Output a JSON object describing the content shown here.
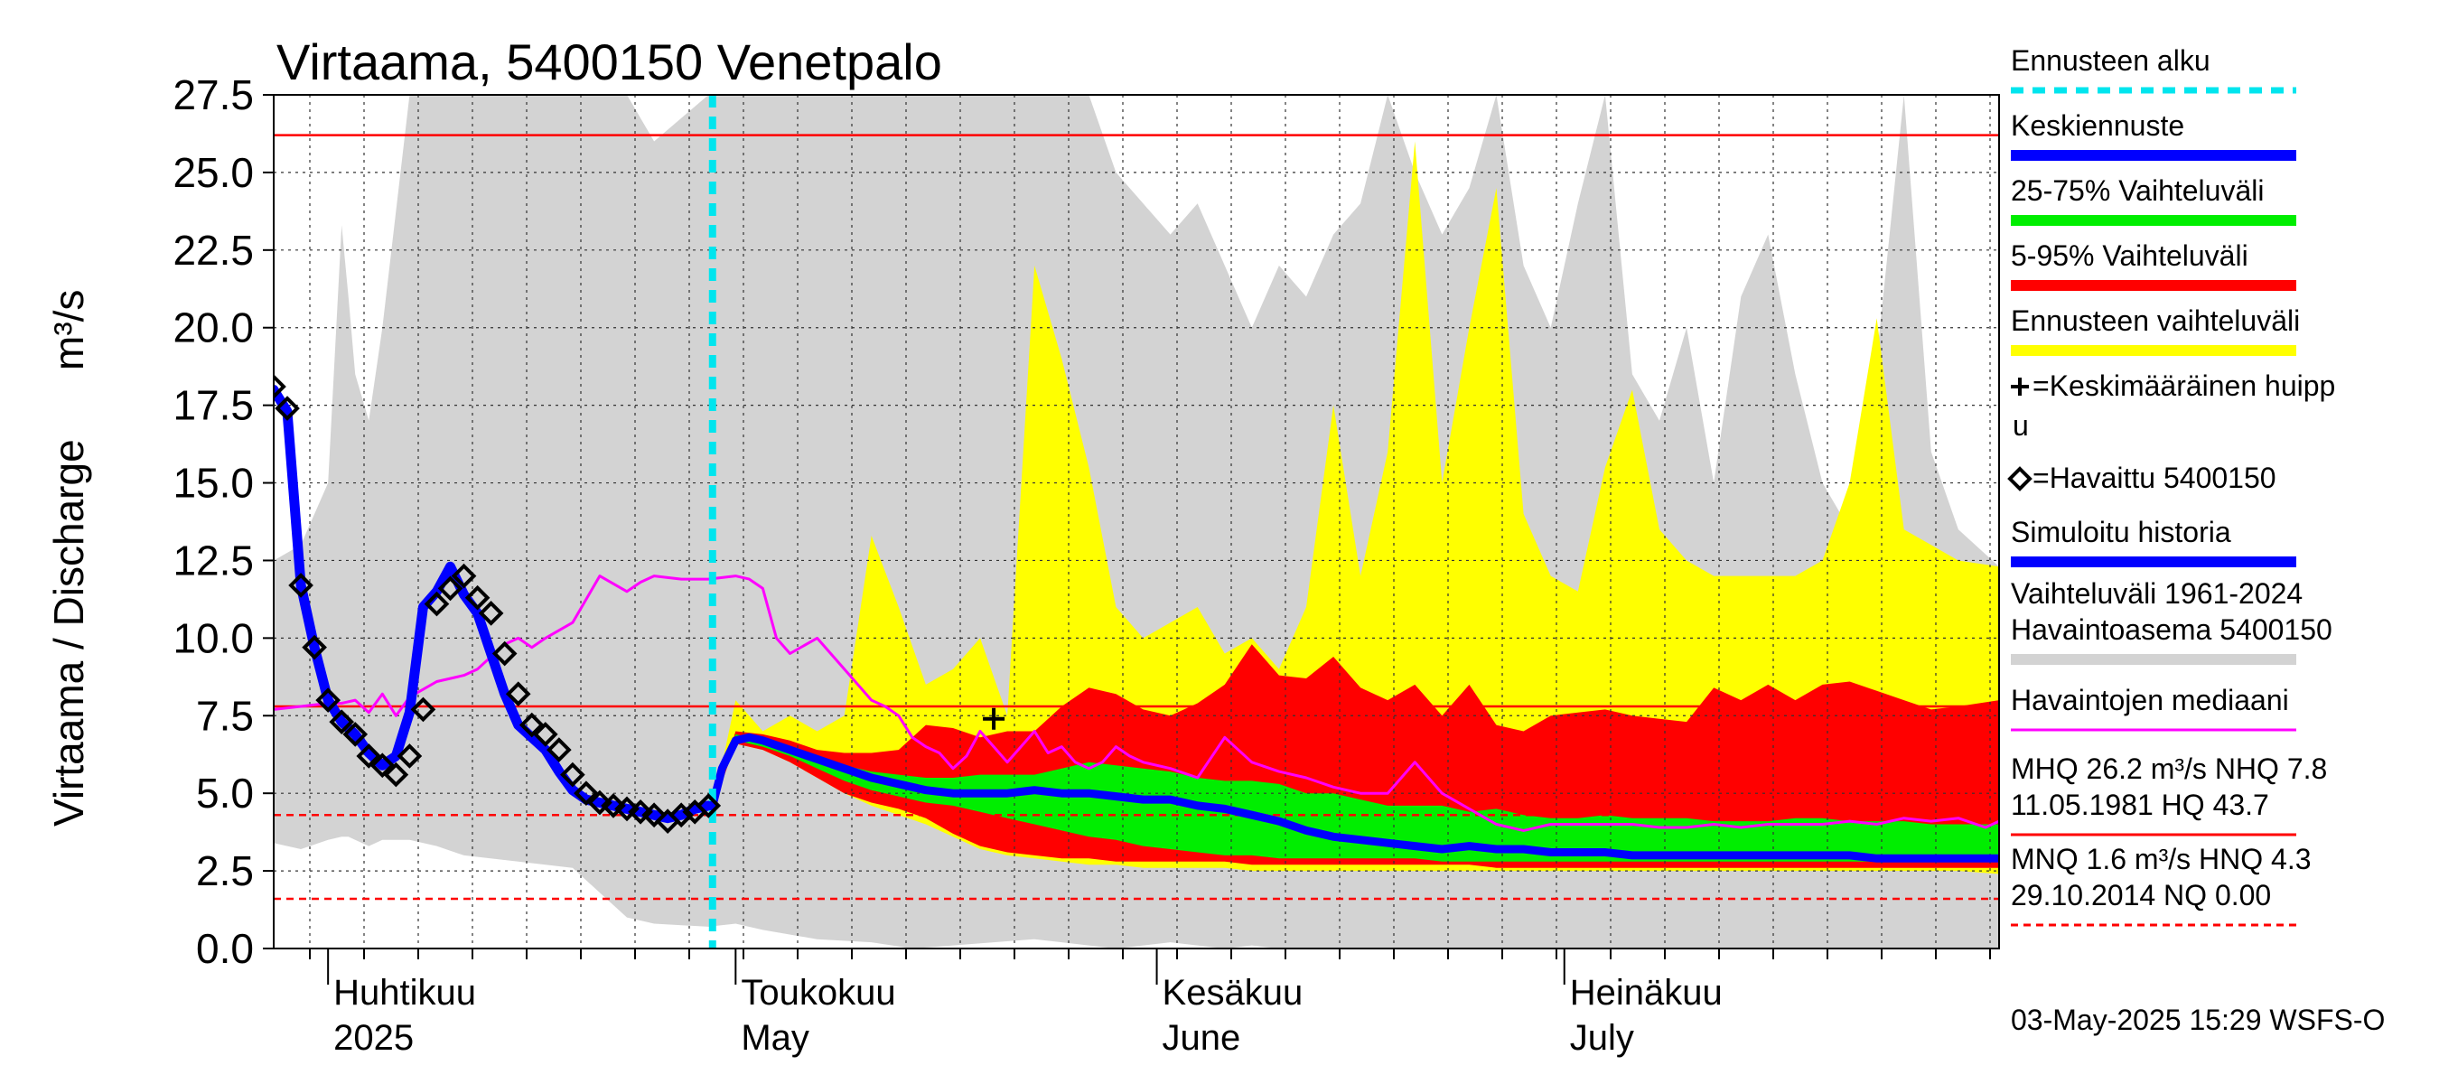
{
  "chart_data": {
    "type": "area",
    "title": "Virtaama, 5400150 Venetpalo",
    "ylabel": "Virtaama / Discharge",
    "yunit": "m³/s",
    "ylim": [
      0,
      27.5
    ],
    "yticks": [
      "0.0",
      "2.5",
      "5.0",
      "7.5",
      "10.0",
      "12.5",
      "15.0",
      "17.5",
      "20.0",
      "22.5",
      "25.0",
      "27.5"
    ],
    "x_range_days": [
      0,
      127
    ],
    "x_day0": "2025-03-28",
    "months": [
      {
        "day": 4,
        "fi": "Huhtikuu",
        "en": "2025"
      },
      {
        "day": 34,
        "fi": "Toukokuu",
        "en": "May"
      },
      {
        "day": 65,
        "fi": "Kesäkuu",
        "en": "June"
      },
      {
        "day": 95,
        "fi": "Heinäkuu",
        "en": "July"
      }
    ],
    "forecast_start_day": 32.3,
    "series": [
      {
        "name": "Vaihteluväli 1961-2024 Havaintoasema 5400150 (gray)",
        "color": "#d3d3d3",
        "x": [
          0,
          2,
          4,
          5,
          5.5,
          6,
          7,
          8,
          10,
          12,
          14,
          18,
          22,
          26,
          28,
          32,
          34,
          36,
          40,
          44,
          47,
          50,
          53,
          56,
          58,
          60,
          62,
          64,
          66,
          68,
          70,
          72,
          74,
          76,
          78,
          80,
          82,
          84,
          86,
          88,
          90,
          92,
          94,
          96,
          98,
          100,
          102,
          104,
          106,
          108,
          110,
          112,
          114,
          116,
          118,
          120,
          122,
          124,
          127
        ],
        "upper": [
          12.5,
          13,
          15,
          23.3,
          21,
          18.5,
          17,
          20,
          27.5,
          27.5,
          27.5,
          27.5,
          27.5,
          27.5,
          26,
          27.5,
          27.5,
          27.5,
          27.5,
          27.5,
          27.5,
          27.5,
          27.5,
          27.5,
          27.5,
          27.5,
          25,
          24,
          23,
          24,
          22,
          20,
          22,
          21,
          23,
          24,
          27.5,
          25,
          23,
          24.5,
          27.5,
          22,
          20,
          24,
          27.5,
          18.5,
          17,
          20,
          15,
          21,
          23,
          18.5,
          15,
          13.5,
          19,
          27.5,
          16,
          13.5,
          12.3
        ],
        "lower": [
          3.4,
          3.2,
          3.5,
          3.6,
          3.6,
          3.5,
          3.3,
          3.5,
          3.5,
          3.3,
          3.0,
          2.8,
          2.6,
          1.0,
          0.8,
          0.7,
          0.8,
          0.6,
          0.3,
          0.2,
          0.0,
          0.1,
          0.2,
          0.3,
          0.2,
          0.1,
          0.0,
          0.1,
          0.2,
          0.1,
          0.0,
          0.1,
          0.0,
          0.0,
          0.0,
          0.0,
          0.0,
          0.0,
          0.0,
          0.0,
          0.0,
          0.0,
          0.0,
          0.0,
          0.0,
          0.0,
          0.0,
          0.0,
          0.0,
          0.0,
          0.0,
          0.0,
          0.0,
          0.0,
          0.0,
          0.0,
          0.0,
          0.0,
          0.0
        ]
      },
      {
        "name": "Ennusteen vaihteluväli (yellow)",
        "color": "#ffff00",
        "x": [
          32.3,
          34,
          36,
          38,
          40,
          42,
          44,
          46,
          48,
          50,
          52,
          54,
          56,
          58,
          60,
          62,
          64,
          66,
          68,
          70,
          72,
          74,
          76,
          78,
          80,
          82,
          84,
          86,
          88,
          90,
          92,
          94,
          96,
          98,
          100,
          102,
          104,
          106,
          108,
          110,
          112,
          114,
          116,
          118,
          120,
          122,
          124,
          127
        ],
        "upper": [
          4.5,
          8.0,
          7.0,
          7.5,
          7.0,
          7.5,
          13.3,
          11,
          8.5,
          9,
          10,
          7.5,
          22,
          19,
          15.5,
          11,
          10,
          10.5,
          11,
          9.5,
          10,
          9,
          11,
          17.5,
          12,
          16,
          26,
          15,
          20,
          24.5,
          14,
          12,
          11.5,
          15.5,
          18,
          13.5,
          12.5,
          12,
          12,
          12,
          12,
          12.5,
          15,
          20.3,
          13.5,
          13,
          12.5,
          12.3
        ],
        "lower": [
          4.5,
          6.6,
          6.4,
          6.0,
          5.5,
          5.0,
          4.6,
          4.3,
          4.0,
          3.6,
          3.2,
          3.0,
          2.9,
          2.8,
          2.7,
          2.7,
          2.6,
          2.6,
          2.6,
          2.6,
          2.5,
          2.5,
          2.5,
          2.5,
          2.5,
          2.5,
          2.5,
          2.5,
          2.5,
          2.5,
          2.5,
          2.5,
          2.5,
          2.5,
          2.5,
          2.5,
          2.5,
          2.5,
          2.5,
          2.5,
          2.5,
          2.5,
          2.5,
          2.5,
          2.5,
          2.5,
          2.5,
          2.4
        ]
      },
      {
        "name": "5-95% Vaihteluväli (red)",
        "color": "#ff0000",
        "x": [
          32.3,
          34,
          36,
          38,
          40,
          42,
          44,
          46,
          48,
          50,
          52,
          54,
          56,
          58,
          60,
          62,
          64,
          66,
          68,
          70,
          72,
          74,
          76,
          78,
          80,
          82,
          84,
          86,
          88,
          90,
          92,
          94,
          96,
          98,
          100,
          102,
          104,
          106,
          108,
          110,
          112,
          114,
          116,
          118,
          120,
          122,
          124,
          127
        ],
        "upper": [
          4.5,
          7.0,
          6.9,
          6.7,
          6.4,
          6.3,
          6.3,
          6.4,
          7.2,
          7.1,
          6.8,
          7.0,
          7.0,
          7.8,
          8.4,
          8.2,
          7.7,
          7.5,
          7.9,
          8.5,
          9.8,
          8.8,
          8.7,
          9.4,
          8.4,
          8.0,
          8.5,
          7.5,
          8.5,
          7.2,
          7.0,
          7.5,
          7.6,
          7.7,
          7.5,
          7.4,
          7.3,
          8.4,
          8.0,
          8.5,
          8.0,
          8.5,
          8.6,
          8.3,
          8.0,
          7.7,
          7.8,
          8.0
        ],
        "lower": [
          4.5,
          6.6,
          6.4,
          6.0,
          5.5,
          5.0,
          4.7,
          4.5,
          4.2,
          3.7,
          3.3,
          3.1,
          3.0,
          2.9,
          2.9,
          2.8,
          2.8,
          2.8,
          2.8,
          2.8,
          2.7,
          2.7,
          2.7,
          2.7,
          2.7,
          2.7,
          2.7,
          2.7,
          2.7,
          2.6,
          2.6,
          2.6,
          2.6,
          2.6,
          2.6,
          2.6,
          2.6,
          2.6,
          2.6,
          2.6,
          2.6,
          2.6,
          2.6,
          2.6,
          2.6,
          2.6,
          2.6,
          2.6
        ]
      },
      {
        "name": "25-75% Vaihteluväli (green)",
        "color": "#00ee00",
        "x": [
          32.3,
          34,
          36,
          38,
          40,
          42,
          44,
          46,
          48,
          50,
          52,
          54,
          56,
          58,
          60,
          62,
          64,
          66,
          68,
          70,
          72,
          74,
          76,
          78,
          80,
          82,
          84,
          86,
          88,
          90,
          92,
          94,
          96,
          98,
          100,
          102,
          104,
          106,
          108,
          110,
          112,
          114,
          116,
          118,
          120,
          122,
          124,
          127
        ],
        "upper": [
          4.5,
          6.9,
          6.7,
          6.5,
          6.2,
          5.9,
          5.7,
          5.6,
          5.5,
          5.5,
          5.6,
          5.6,
          5.6,
          5.8,
          6.0,
          5.9,
          5.8,
          5.7,
          5.5,
          5.4,
          5.4,
          5.3,
          5.0,
          5.0,
          4.8,
          4.6,
          4.6,
          4.6,
          4.4,
          4.5,
          4.3,
          4.2,
          4.2,
          4.3,
          4.2,
          4.2,
          4.2,
          4.1,
          4.1,
          4.1,
          4.2,
          4.2,
          4.1,
          4.1,
          4.1,
          4.0,
          4.0,
          4.0
        ],
        "lower": [
          4.5,
          6.7,
          6.5,
          6.2,
          5.8,
          5.4,
          5.1,
          4.9,
          4.7,
          4.6,
          4.4,
          4.2,
          4.0,
          3.8,
          3.6,
          3.5,
          3.3,
          3.2,
          3.1,
          3.0,
          3.0,
          2.9,
          2.9,
          2.9,
          2.9,
          2.9,
          2.9,
          2.8,
          2.8,
          2.8,
          2.8,
          2.8,
          2.8,
          2.8,
          2.8,
          2.8,
          2.8,
          2.8,
          2.8,
          2.8,
          2.8,
          2.8,
          2.8,
          2.8,
          2.8,
          2.8,
          2.8,
          2.8
        ]
      },
      {
        "name": "Havaintojen mediaani",
        "color": "#ff00ff",
        "x": [
          0,
          2,
          4,
          5,
          6,
          7,
          8,
          9,
          10,
          12,
          14,
          15,
          17,
          18,
          19,
          20,
          22,
          24,
          26,
          27,
          28,
          30,
          32,
          34,
          35,
          36,
          37,
          38,
          40,
          42,
          44,
          45,
          46,
          47,
          48,
          49,
          50,
          51,
          52,
          53,
          54,
          55,
          56,
          57,
          58,
          59,
          60,
          61,
          62,
          63,
          64,
          66,
          68,
          70,
          72,
          74,
          76,
          78,
          80,
          82,
          84,
          86,
          88,
          90,
          92,
          94,
          96,
          98,
          100,
          102,
          104,
          106,
          108,
          110,
          112,
          114,
          116,
          118,
          120,
          122,
          124,
          126,
          127
        ],
        "y": [
          7.7,
          7.8,
          7.9,
          7.9,
          8.0,
          7.6,
          8.2,
          7.5,
          8.1,
          8.6,
          8.8,
          9.0,
          9.8,
          10.0,
          9.7,
          10.0,
          10.5,
          12.0,
          11.5,
          11.8,
          12.0,
          11.9,
          11.9,
          12.0,
          11.9,
          11.6,
          10.0,
          9.5,
          10.0,
          9.0,
          8.0,
          7.8,
          7.5,
          6.8,
          6.5,
          6.3,
          5.8,
          6.2,
          7.0,
          6.5,
          6.0,
          6.5,
          7.0,
          6.3,
          6.5,
          6.0,
          5.8,
          6.0,
          6.5,
          6.2,
          6.0,
          5.8,
          5.5,
          6.8,
          6.0,
          5.7,
          5.5,
          5.2,
          5.0,
          5.0,
          6.0,
          5.0,
          4.5,
          4.0,
          3.8,
          4.0,
          4.0,
          4.0,
          4.0,
          3.9,
          3.9,
          4.0,
          3.9,
          4.0,
          4.0,
          4.0,
          4.1,
          4.0,
          4.2,
          4.1,
          4.2,
          3.9,
          4.1
        ]
      },
      {
        "name": "Simuloitu historia",
        "color": "#0000ff",
        "x": [
          0,
          1,
          2,
          3,
          4,
          5,
          6,
          7,
          8,
          9,
          10,
          11,
          12,
          13,
          14,
          15,
          16,
          17,
          18,
          19,
          20,
          21,
          22,
          23,
          24,
          25,
          26,
          27,
          28,
          29,
          30,
          31,
          32,
          32.3
        ],
        "y": [
          18.0,
          17.3,
          11.7,
          9.7,
          8.0,
          7.3,
          6.9,
          6.3,
          5.9,
          6.2,
          7.6,
          11.0,
          11.5,
          12.3,
          11.4,
          10.8,
          9.5,
          8.2,
          7.2,
          6.8,
          6.4,
          5.7,
          5.1,
          4.8,
          4.7,
          4.6,
          4.5,
          4.4,
          4.3,
          4.2,
          4.3,
          4.5,
          4.6,
          4.6
        ]
      },
      {
        "name": "Keskiennuste",
        "color": "#0000ff",
        "x": [
          32.3,
          33,
          34,
          35,
          36,
          38,
          40,
          42,
          44,
          46,
          48,
          50,
          52,
          54,
          56,
          58,
          60,
          62,
          64,
          66,
          68,
          70,
          72,
          74,
          76,
          78,
          80,
          82,
          84,
          86,
          88,
          90,
          92,
          94,
          96,
          98,
          100,
          102,
          104,
          106,
          108,
          110,
          112,
          114,
          116,
          118,
          120,
          122,
          124,
          127
        ],
        "y": [
          4.6,
          5.8,
          6.7,
          6.8,
          6.7,
          6.4,
          6.1,
          5.8,
          5.5,
          5.3,
          5.1,
          5.0,
          5.0,
          5.0,
          5.1,
          5.0,
          5.0,
          4.9,
          4.8,
          4.8,
          4.6,
          4.5,
          4.3,
          4.1,
          3.8,
          3.6,
          3.5,
          3.4,
          3.3,
          3.2,
          3.3,
          3.2,
          3.2,
          3.1,
          3.1,
          3.1,
          3.0,
          3.0,
          3.0,
          3.0,
          3.0,
          3.0,
          3.0,
          3.0,
          3.0,
          2.9,
          2.9,
          2.9,
          2.9,
          2.9
        ]
      },
      {
        "name": "Havaittu 5400150",
        "color": "#000000",
        "x": [
          0,
          1,
          2,
          3,
          4,
          5,
          6,
          7,
          8,
          9,
          10,
          11,
          12,
          13,
          14,
          15,
          16,
          17,
          18,
          19,
          20,
          21,
          22,
          23,
          24,
          25,
          26,
          27,
          28,
          29,
          30,
          31,
          32
        ],
        "y": [
          18.1,
          17.4,
          11.7,
          9.7,
          8.0,
          7.3,
          6.9,
          6.2,
          5.9,
          5.6,
          6.2,
          7.7,
          11.1,
          11.6,
          12.0,
          11.3,
          10.8,
          9.5,
          8.2,
          7.2,
          6.9,
          6.4,
          5.6,
          5.0,
          4.7,
          4.6,
          4.5,
          4.4,
          4.3,
          4.1,
          4.3,
          4.4,
          4.6
        ]
      },
      {
        "name": "Keskimääräinen huippu",
        "color": "#000000",
        "x": [
          53
        ],
        "y": [
          7.4
        ]
      }
    ],
    "reference_lines": [
      {
        "name": "MHQ",
        "value": 26.2,
        "style": "solid",
        "color": "#ff0000"
      },
      {
        "name": "NHQ",
        "value": 7.8,
        "style": "solid",
        "color": "#ff0000"
      },
      {
        "name": "HNQ",
        "value": 4.3,
        "style": "dashed",
        "color": "#ff0000"
      },
      {
        "name": "MNQ",
        "value": 1.6,
        "style": "dashed",
        "color": "#ff0000"
      }
    ],
    "legend": {
      "placement": "right",
      "items": [
        {
          "label": "Ennusteen alku",
          "swatch": "dashed",
          "color": "#00e5ee"
        },
        {
          "label": "Keskiennuste",
          "swatch": "line",
          "color": "#0000ff"
        },
        {
          "label": "25-75% Vaihteluväli",
          "swatch": "line",
          "color": "#00ee00"
        },
        {
          "label": "5-95% Vaihteluväli",
          "swatch": "line",
          "color": "#ff0000"
        },
        {
          "label": "Ennusteen vaihteluväli",
          "swatch": "line",
          "color": "#ffff00"
        },
        {
          "label": "=Keskimääräinen huipp",
          "label2": "u",
          "swatch": "plus",
          "color": "#000000"
        },
        {
          "label": "=Havaittu 5400150",
          "swatch": "diamond",
          "color": "#000000"
        },
        {
          "label": "Simuloitu historia",
          "swatch": "line",
          "color": "#0000ff"
        },
        {
          "label": "Vaihteluväli 1961-2024",
          "label2": " Havaintoasema 5400150",
          "swatch": "line",
          "color": "#d3d3d3"
        },
        {
          "label": "Havaintojen mediaani",
          "swatch": "line",
          "color": "#ff00ff"
        },
        {
          "label": "MHQ 26.2 m³/s NHQ  7.8",
          "label2": "11.05.1981 HQ 43.7",
          "swatch": "line",
          "color": "#ff0000"
        },
        {
          "label": "MNQ  1.6 m³/s HNQ  4.3",
          "label2": "29.10.2014 NQ 0.00",
          "swatch": "dashed",
          "color": "#ff0000"
        }
      ]
    },
    "timestamp": "03-May-2025 15:29 WSFS-O",
    "grid": true
  }
}
